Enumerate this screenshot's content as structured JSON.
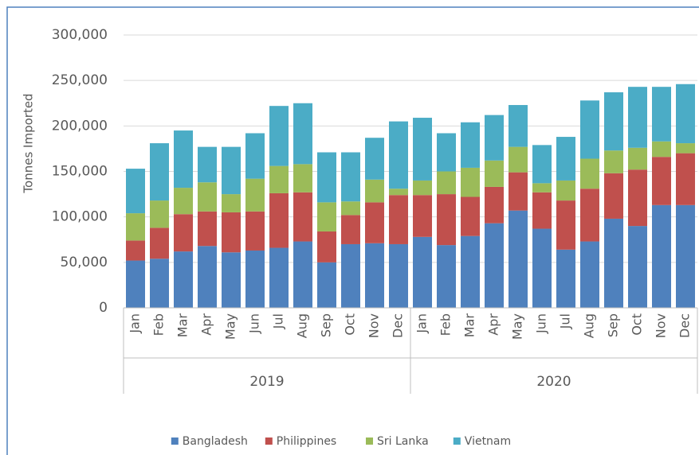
{
  "chart_data": {
    "type": "stacked_bar",
    "y_label": "Tonnes Imported",
    "categories": [
      "Jan",
      "Feb",
      "Mar",
      "Apr",
      "May",
      "Jun",
      "Jul",
      "Aug",
      "Sep",
      "Oct",
      "Nov",
      "Dec",
      "Jan",
      "Feb",
      "Mar",
      "Apr",
      "May",
      "Jun",
      "Jul",
      "Aug",
      "Sep",
      "Oct",
      "Nov",
      "Dec"
    ],
    "group_labels": [
      "2019",
      "2020"
    ],
    "series": [
      {
        "name": "Bangladesh",
        "color": "#4f81bd",
        "values": [
          52000,
          54000,
          62000,
          68000,
          61000,
          63000,
          66000,
          73000,
          50000,
          70000,
          71000,
          70000,
          78000,
          69000,
          79000,
          93000,
          107000,
          87000,
          64000,
          73000,
          98000,
          90000,
          113000,
          113000
        ]
      },
      {
        "name": "Philippines",
        "color": "#c0504d",
        "values": [
          22000,
          34000,
          41000,
          38000,
          44000,
          43000,
          60000,
          54000,
          34000,
          32000,
          45000,
          54000,
          46000,
          56000,
          43000,
          40000,
          42000,
          40000,
          54000,
          58000,
          50000,
          62000,
          53000,
          57000
        ]
      },
      {
        "name": "Sri Lanka",
        "color": "#9bbb59",
        "values": [
          30000,
          30000,
          29000,
          32000,
          20000,
          36000,
          30000,
          31000,
          32000,
          15000,
          25000,
          7000,
          16000,
          25000,
          32000,
          29000,
          28000,
          10000,
          22000,
          33000,
          25000,
          24000,
          17000,
          11000
        ]
      },
      {
        "name": "Vietnam",
        "color": "#4bacc6",
        "values": [
          49000,
          63000,
          63000,
          39000,
          52000,
          50000,
          66000,
          67000,
          55000,
          54000,
          46000,
          74000,
          69000,
          42000,
          50000,
          50000,
          46000,
          42000,
          48000,
          64000,
          64000,
          67000,
          60000,
          65000
        ]
      }
    ],
    "ylim": [
      0,
      300000
    ],
    "yticks": [
      0,
      {
        "value": 50000,
        "label": "50,000"
      },
      {
        "value": 100000,
        "label": "100,000"
      },
      {
        "value": 150000,
        "label": "150,000"
      },
      {
        "value": 200000,
        "label": "200,000"
      },
      {
        "value": 250000,
        "label": "250,000"
      },
      {
        "value": 300000,
        "label": "300,000"
      }
    ],
    "grid": true,
    "legend": "bottom"
  }
}
